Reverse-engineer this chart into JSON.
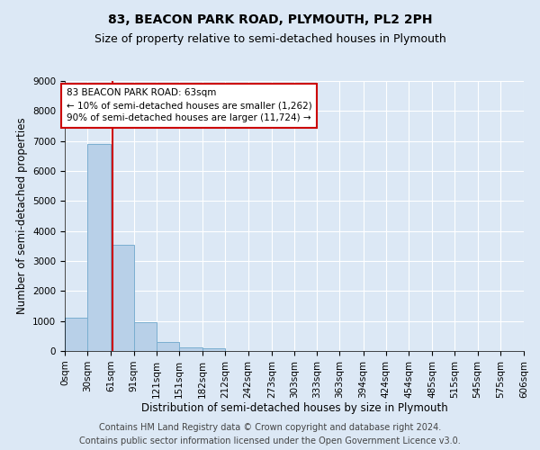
{
  "title": "83, BEACON PARK ROAD, PLYMOUTH, PL2 2PH",
  "subtitle": "Size of property relative to semi-detached houses in Plymouth",
  "xlabel": "Distribution of semi-detached houses by size in Plymouth",
  "ylabel": "Number of semi-detached properties",
  "bar_values": [
    1100,
    6900,
    3550,
    950,
    300,
    130,
    80,
    0,
    0,
    0,
    0,
    0,
    0,
    0,
    0,
    0,
    0,
    0,
    0,
    0
  ],
  "bin_edges": [
    0,
    30,
    61,
    91,
    121,
    151,
    182,
    212,
    242,
    273,
    303,
    333,
    363,
    394,
    424,
    454,
    485,
    515,
    545,
    575,
    606
  ],
  "bin_labels": [
    "0sqm",
    "30sqm",
    "61sqm",
    "91sqm",
    "121sqm",
    "151sqm",
    "182sqm",
    "212sqm",
    "242sqm",
    "273sqm",
    "303sqm",
    "333sqm",
    "363sqm",
    "394sqm",
    "424sqm",
    "454sqm",
    "485sqm",
    "515sqm",
    "545sqm",
    "575sqm",
    "606sqm"
  ],
  "bar_color": "#b8d0e8",
  "bar_edge_color": "#7aaed0",
  "property_value": 63,
  "property_label": "83 BEACON PARK ROAD: 63sqm",
  "annotation_line1": "← 10% of semi-detached houses are smaller (1,262)",
  "annotation_line2": "90% of semi-detached houses are larger (11,724) →",
  "red_line_color": "#cc0000",
  "annotation_box_facecolor": "#ffffff",
  "annotation_box_edgecolor": "#cc0000",
  "ylim": [
    0,
    9000
  ],
  "yticks": [
    0,
    1000,
    2000,
    3000,
    4000,
    5000,
    6000,
    7000,
    8000,
    9000
  ],
  "footer_line1": "Contains HM Land Registry data © Crown copyright and database right 2024.",
  "footer_line2": "Contains public sector information licensed under the Open Government Licence v3.0.",
  "bg_color": "#dce8f5",
  "plot_bg_color": "#dce8f5",
  "title_fontsize": 10,
  "subtitle_fontsize": 9,
  "axis_label_fontsize": 8.5,
  "tick_fontsize": 7.5,
  "annotation_fontsize": 7.5,
  "footer_fontsize": 7
}
